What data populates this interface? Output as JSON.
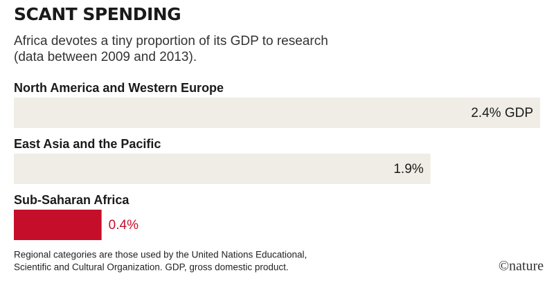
{
  "chart_data": {
    "type": "bar",
    "orientation": "horizontal",
    "title": "SCANT SPENDING",
    "subtitle": [
      "Africa devotes a tiny proportion of its GDP to research",
      "(data between 2009 and 2013)."
    ],
    "categories": [
      "North America and Western Europe",
      "East Asia and the Pacific",
      "Sub-Saharan Africa"
    ],
    "values": [
      2.4,
      1.9,
      0.4
    ],
    "value_labels": [
      "2.4% GDP",
      "1.9%",
      "0.4%"
    ],
    "colors": [
      "#efede5",
      "#efede5",
      "#c50f2a"
    ],
    "label_colors": [
      "#1a1a1a",
      "#1a1a1a",
      "#c50f2a"
    ],
    "note": [
      "Regional categories are those used by the United Nations Educational,",
      "Scientific and Cultural Organization. GDP, gross domestic product."
    ],
    "credit": "©nature"
  }
}
